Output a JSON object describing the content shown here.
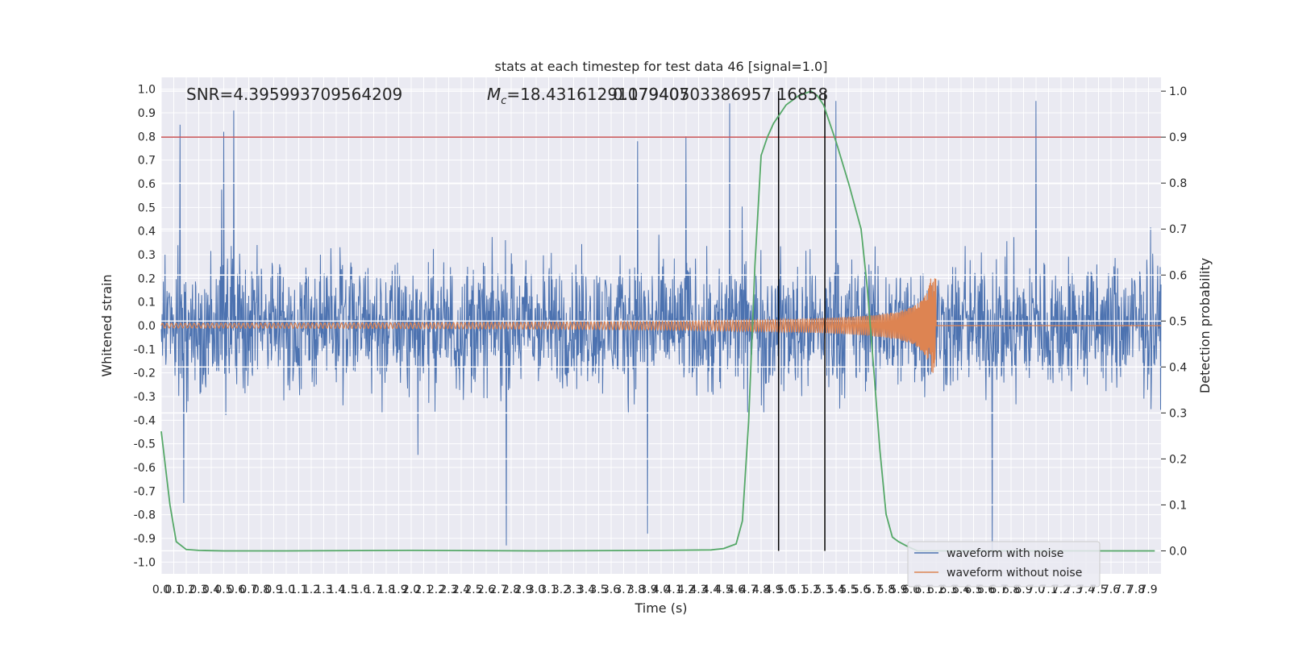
{
  "chart_data": {
    "type": "line",
    "title": "stats at each timestep for test data 46 [signal=1.0]",
    "xlabel": "Time (s)",
    "ylabel_left": "Whitened strain",
    "ylabel_right": "Detection probability",
    "xlim": [
      0.0,
      8.0
    ],
    "ylim_left": [
      -1.05,
      1.05
    ],
    "ylim_right": [
      -0.05,
      1.03
    ],
    "x_ticks": [
      "0.0",
      "0.1",
      "0.2",
      "0.3",
      "0.4",
      "0.5",
      "0.6",
      "0.7",
      "0.8",
      "0.9",
      "1.0",
      "1.1",
      "1.2",
      "1.3",
      "1.4",
      "1.5",
      "1.6",
      "1.7",
      "1.8",
      "1.9",
      "2.0",
      "2.1",
      "2.2",
      "2.3",
      "2.4",
      "2.5",
      "2.6",
      "2.7",
      "2.8",
      "2.9",
      "3.0",
      "3.1",
      "3.2",
      "3.3",
      "3.4",
      "3.5",
      "3.6",
      "3.7",
      "3.8",
      "3.9",
      "4.0",
      "4.1",
      "4.2",
      "4.3",
      "4.4",
      "4.5",
      "4.6",
      "4.7",
      "4.8",
      "4.9",
      "5.0",
      "5.1",
      "5.2",
      "5.3",
      "5.4",
      "5.5",
      "5.6",
      "5.7",
      "5.8",
      "5.9",
      "6.0",
      "6.1",
      "6.2",
      "6.3",
      "6.4",
      "6.5",
      "6.6",
      "6.7",
      "6.8",
      "6.9",
      "7.0",
      "7.1",
      "7.2",
      "7.3",
      "7.4",
      "7.5",
      "7.6",
      "7.7",
      "7.8",
      "7.9"
    ],
    "y_ticks_left": [
      "1.0",
      "0.9",
      "0.8",
      "0.7",
      "0.6",
      "0.5",
      "0.4",
      "0.3",
      "0.2",
      "0.1",
      "0.0",
      "-0.1",
      "-0.2",
      "-0.3",
      "-0.4",
      "-0.5",
      "-0.6",
      "-0.7",
      "-0.8",
      "-0.9",
      "-1.0"
    ],
    "y_ticks_right": [
      "1.0",
      "0.9",
      "0.8",
      "0.7",
      "0.6",
      "0.5",
      "0.4",
      "0.3",
      "0.2",
      "0.1",
      "0.0"
    ],
    "annotations": {
      "snr": "SNR=4.395993709564209",
      "mc": "M",
      "mc_sub": "c",
      "mc_value": "=18.43161291079407",
      "overlap": "0.17940503386957 16858"
    },
    "threshold": {
      "value": 0.9,
      "color": "#c44e52"
    },
    "vertical_markers_x": [
      4.94,
      5.31
    ],
    "series": [
      {
        "name": "waveform with noise",
        "color": "#4c72b0",
        "description_values": {
          "envelope_typical": 0.37,
          "peaks": [
            [
              0.15,
              0.85
            ],
            [
              0.5,
              0.82
            ],
            [
              0.58,
              0.91
            ],
            [
              3.81,
              0.78
            ],
            [
              4.2,
              0.8
            ],
            [
              4.55,
              0.94
            ],
            [
              5.4,
              0.95
            ],
            [
              7.0,
              0.95
            ],
            [
              2.76,
              -0.93
            ],
            [
              3.89,
              -0.88
            ],
            [
              6.65,
              -0.98
            ],
            [
              0.18,
              -0.75
            ]
          ]
        }
      },
      {
        "name": "waveform without noise",
        "color": "#dd8452",
        "chirp_end_x": 6.2,
        "chirp_peak_amplitude": 0.2
      },
      {
        "name": "detection probability",
        "color": "#55a868",
        "axis": "right",
        "x": [
          0.0,
          0.07,
          0.12,
          0.2,
          0.3,
          0.5,
          1.0,
          2.0,
          3.0,
          4.0,
          4.4,
          4.5,
          4.6,
          4.65,
          4.7,
          4.75,
          4.8,
          4.85,
          4.9,
          5.0,
          5.1,
          5.2,
          5.25,
          5.3,
          5.4,
          5.5,
          5.6,
          5.65,
          5.7,
          5.75,
          5.8,
          5.85,
          5.9,
          5.97,
          6.05,
          6.2,
          7.0,
          7.95
        ],
        "y": [
          0.26,
          0.1,
          0.02,
          0.003,
          0.001,
          0.0,
          0.0,
          0.001,
          0.0,
          0.001,
          0.002,
          0.005,
          0.015,
          0.065,
          0.28,
          0.62,
          0.86,
          0.9,
          0.93,
          0.97,
          0.99,
          1.0,
          0.99,
          0.97,
          0.89,
          0.8,
          0.7,
          0.57,
          0.4,
          0.22,
          0.08,
          0.03,
          0.02,
          0.01,
          0.0,
          0.0,
          0.0,
          0.0
        ]
      }
    ],
    "legend": {
      "placement": "bottom-right",
      "entries": [
        {
          "label": "waveform with noise",
          "color": "#4c72b0"
        },
        {
          "label": "waveform without noise",
          "color": "#dd8452"
        }
      ]
    },
    "style": {
      "background": "#eaeaf2",
      "grid": true,
      "grid_color": "#ffffff"
    }
  }
}
